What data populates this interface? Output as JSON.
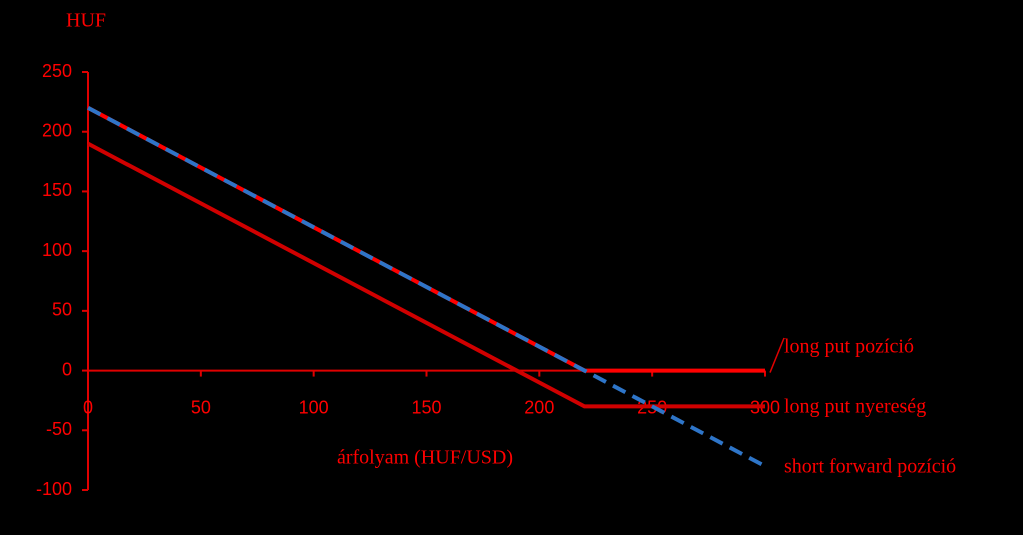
{
  "chart_data": {
    "type": "line",
    "y_label": "HUF",
    "x_label": "árfolyam (HUF/USD)",
    "x": [
      0,
      220,
      300
    ],
    "xlim": [
      0,
      300
    ],
    "xticks": [
      0,
      50,
      100,
      150,
      200,
      250,
      300
    ],
    "ylim": [
      -100,
      250
    ],
    "yticks": [
      -100,
      -50,
      0,
      50,
      100,
      150,
      200,
      250
    ],
    "grid": false,
    "series": [
      {
        "name": "long put pozíció",
        "color": "#ff0000",
        "dash": false,
        "values": [
          220,
          0,
          0
        ]
      },
      {
        "name": "long put nyereség",
        "color": "#d00000",
        "dash": false,
        "values": [
          190,
          -30,
          -30
        ]
      },
      {
        "name": "short forward pozíció",
        "color": "#2e75c8",
        "dash": true,
        "values": [
          220,
          0,
          -80
        ]
      }
    ]
  }
}
